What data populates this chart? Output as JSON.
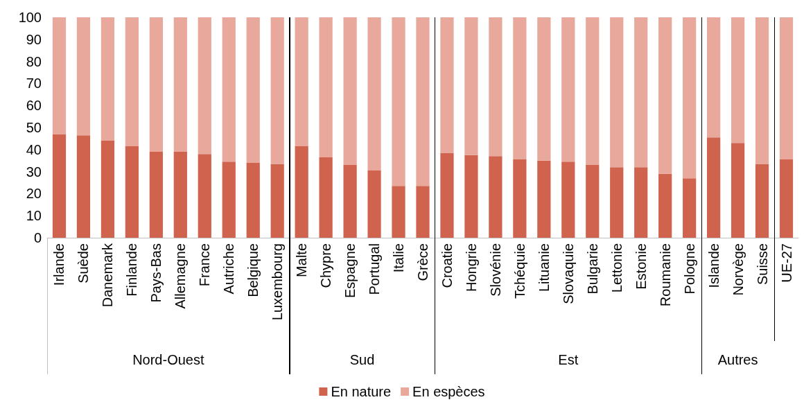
{
  "chart_data": {
    "type": "bar",
    "stacked": true,
    "categories": [
      "Irlande",
      "Suède",
      "Danemark",
      "Finlande",
      "Pays-Bas",
      "Allemagne",
      "France",
      "Autriche",
      "Belgique",
      "Luxembourg",
      "Malte",
      "Chypre",
      "Espagne",
      "Portugal",
      "Italie",
      "Grèce",
      "Croatie",
      "Hongrie",
      "Slovénie",
      "Tchéquie",
      "Lituanie",
      "Slovaquie",
      "Bulgarie",
      "Lettonie",
      "Estonie",
      "Roumanie",
      "Pologne",
      "Islande",
      "Norvège",
      "Suisse",
      "UE-27"
    ],
    "series": [
      {
        "name": "En nature",
        "color": "#d0634d",
        "values": [
          47,
          46.5,
          44,
          41.5,
          39,
          39,
          38,
          34.5,
          34,
          33.5,
          41.5,
          36.5,
          33,
          30.5,
          23.5,
          23.5,
          38.5,
          37.5,
          37,
          35.5,
          35,
          34.5,
          33,
          32,
          32,
          29,
          27,
          45.5,
          43,
          33.5,
          35.5
        ]
      },
      {
        "name": "En espèces",
        "color": "#e8a89c",
        "values": [
          53,
          53.5,
          56,
          58.5,
          61,
          61,
          62,
          65.5,
          66,
          66.5,
          58.5,
          63.5,
          67,
          69.5,
          76.5,
          76.5,
          61.5,
          62.5,
          63,
          64.5,
          65,
          65.5,
          67,
          68,
          68,
          71,
          73,
          54.5,
          57,
          66.5,
          64.5
        ]
      }
    ],
    "ylim": [
      0,
      100
    ],
    "yticks": [
      0,
      10,
      20,
      30,
      40,
      50,
      60,
      70,
      80,
      90,
      100
    ],
    "grid": false,
    "legend": "bottom",
    "annotations": [
      "Nord-Ouest",
      "Sud",
      "Est",
      "Autres"
    ]
  }
}
